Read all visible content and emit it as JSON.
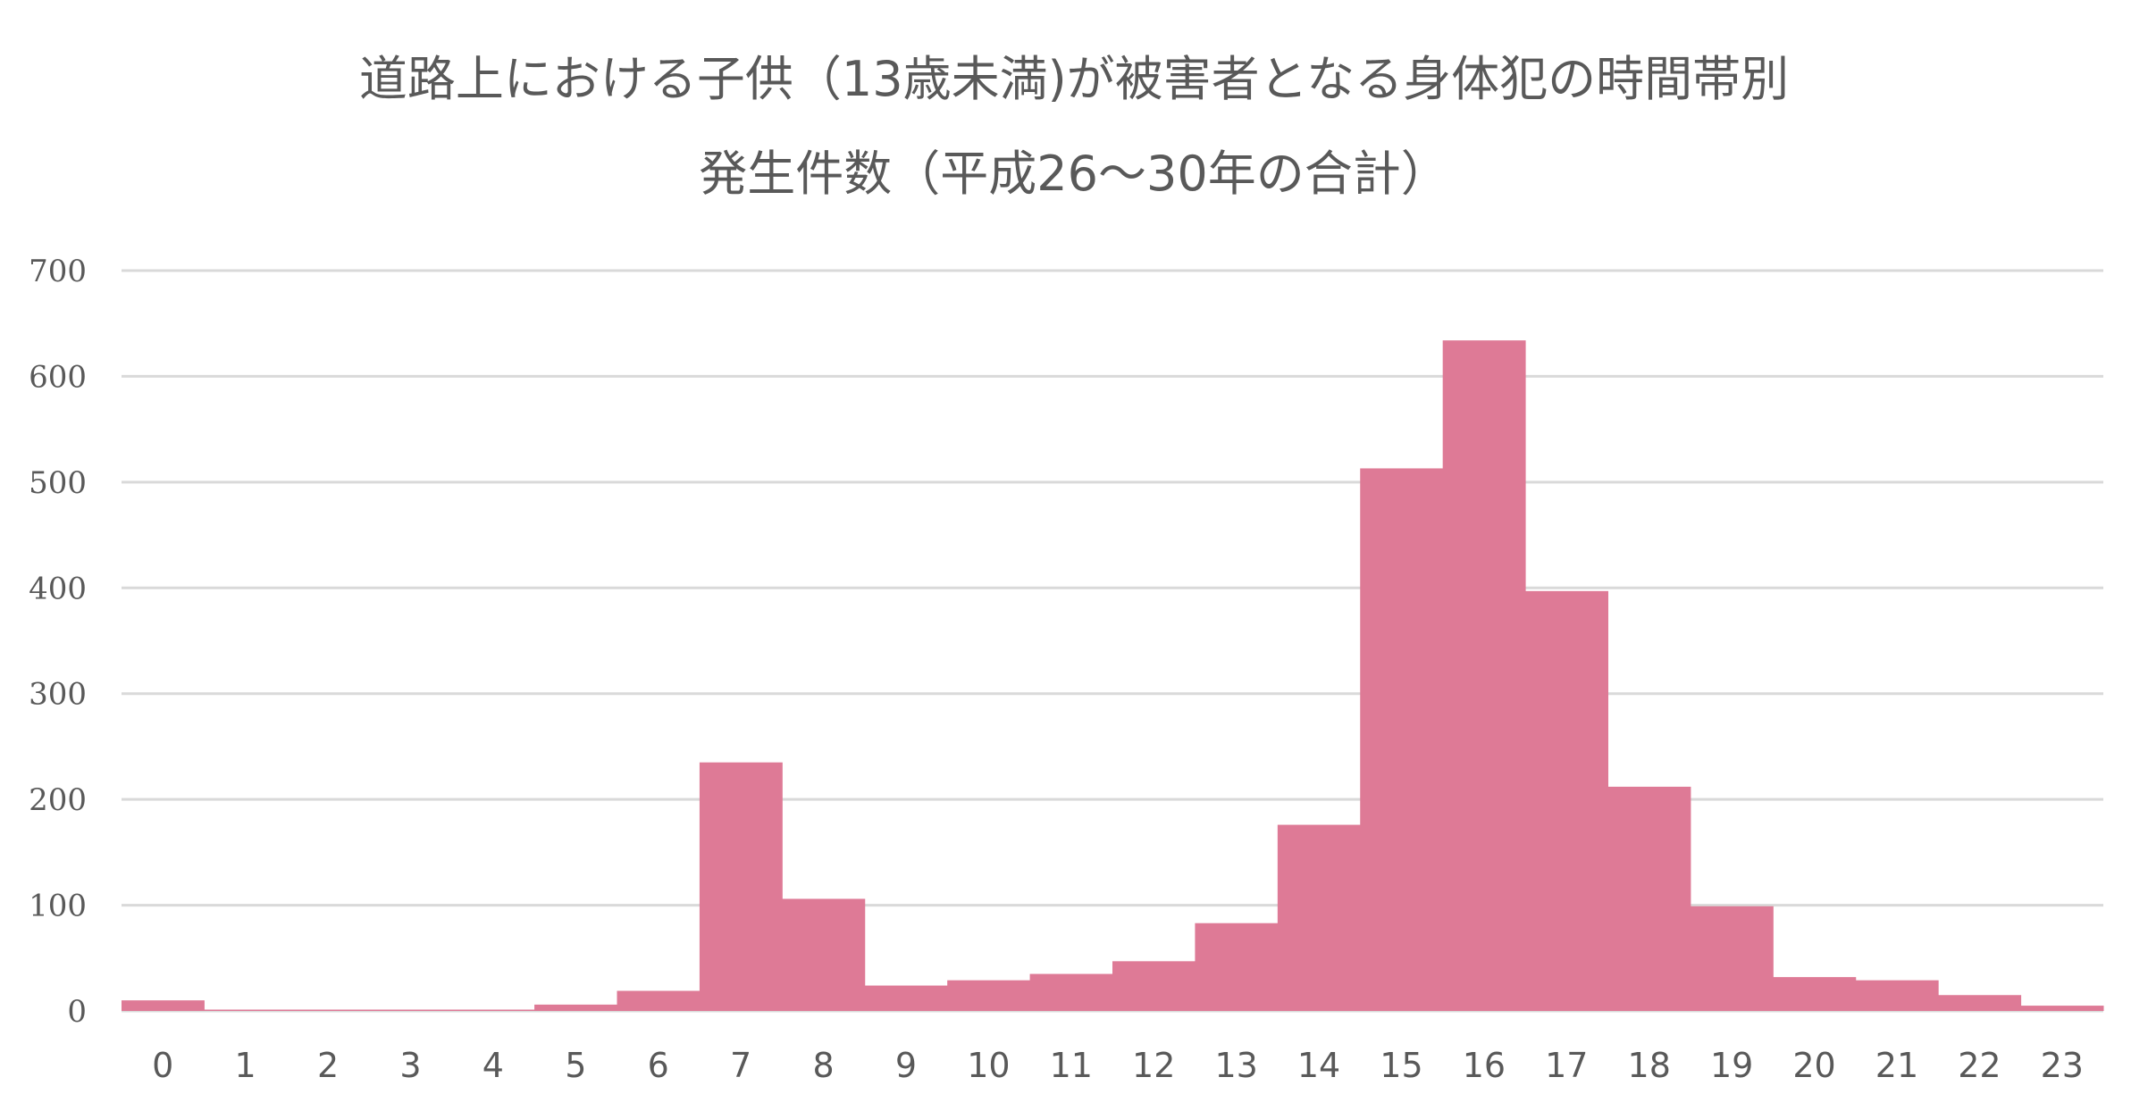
{
  "title": {
    "line1": "道路上における子供（13歳未満)が被害者となる身体犯の時間帯別",
    "line2": "発生件数（平成26～30年の合計）"
  },
  "colors": {
    "bar": "#de7a96",
    "grid": "#d9d9d9",
    "text": "#595959"
  },
  "chart_data": {
    "type": "bar",
    "title": "道路上における子供（13歳未満)が被害者となる身体犯の時間帯別 発生件数（平成26～30年の合計）",
    "xlabel": "",
    "ylabel": "",
    "categories": [
      "0",
      "1",
      "2",
      "3",
      "4",
      "5",
      "6",
      "7",
      "8",
      "9",
      "10",
      "11",
      "12",
      "13",
      "14",
      "15",
      "16",
      "17",
      "18",
      "19",
      "20",
      "21",
      "22",
      "23"
    ],
    "values": [
      10,
      1,
      1,
      1,
      1,
      6,
      19,
      235,
      106,
      24,
      29,
      35,
      47,
      83,
      176,
      513,
      634,
      397,
      212,
      99,
      32,
      29,
      15,
      5
    ],
    "ylim": [
      0,
      700
    ],
    "yticks": [
      0,
      100,
      200,
      300,
      400,
      500,
      600,
      700
    ],
    "grid": true,
    "legend": null,
    "bar_gap": 0
  }
}
